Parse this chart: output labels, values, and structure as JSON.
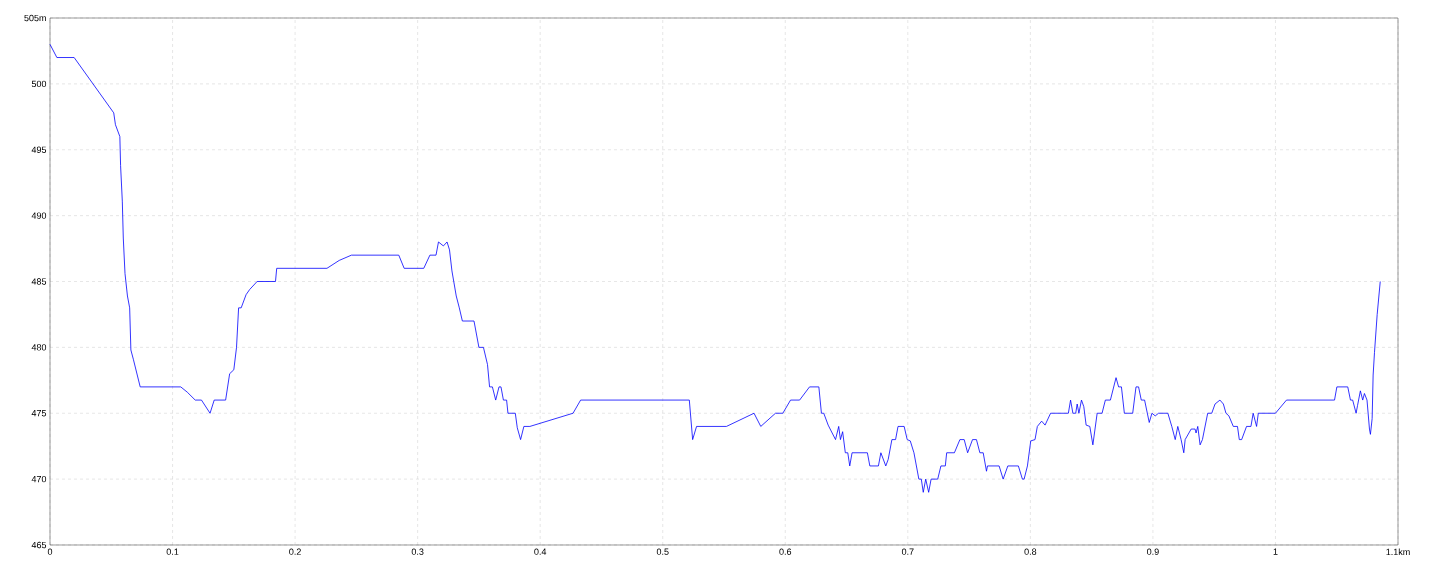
{
  "chart_data": {
    "type": "line",
    "color": "#0000ff",
    "grid": true,
    "xlim": [
      0,
      1.1
    ],
    "ylim": [
      465,
      505
    ],
    "xticks": [
      0,
      0.1,
      0.2,
      0.3,
      0.4,
      0.5,
      0.6,
      0.7,
      0.8,
      0.9,
      1,
      {
        "value": 1.1,
        "label": "1.1km"
      }
    ],
    "yticks": [
      465,
      470,
      475,
      480,
      485,
      490,
      495,
      500,
      {
        "value": 505,
        "label": "505m"
      }
    ],
    "x": [
      0,
      0.0056,
      0.0197,
      0.052,
      0.0534,
      0.057,
      0.0576,
      0.059,
      0.0598,
      0.0612,
      0.0632,
      0.065,
      0.066,
      0.068,
      0.0736,
      0.1067,
      0.112,
      0.1185,
      0.1236,
      0.1306,
      0.134,
      0.1433,
      0.1466,
      0.15,
      0.1522,
      0.1539,
      0.156,
      0.16,
      0.163,
      0.169,
      0.184,
      0.185,
      0.226,
      0.236,
      0.246,
      0.2846,
      0.289,
      0.305,
      0.31,
      0.315,
      0.317,
      0.321,
      0.324,
      0.326,
      0.328,
      0.3315,
      0.334,
      0.3365,
      0.346,
      0.35,
      0.3537,
      0.357,
      0.3587,
      0.361,
      0.3637,
      0.3664,
      0.368,
      0.37,
      0.3726,
      0.3737,
      0.3797,
      0.3813,
      0.384,
      0.3867,
      0.3916,
      0.4268,
      0.433,
      0.5217,
      0.5244,
      0.5276,
      0.552,
      0.5745,
      0.58,
      0.592,
      0.598,
      0.6043,
      0.6117,
      0.6198,
      0.6274,
      0.6295,
      0.6314,
      0.635,
      0.641,
      0.6436,
      0.645,
      0.6468,
      0.649,
      0.651,
      0.6526,
      0.6545,
      0.667,
      0.669,
      0.676,
      0.678,
      0.682,
      0.684,
      0.687,
      0.69,
      0.692,
      0.697,
      0.6995,
      0.702,
      0.705,
      0.709,
      0.711,
      0.7126,
      0.7146,
      0.717,
      0.719,
      0.7244,
      0.727,
      0.7306,
      0.7317,
      0.738,
      0.7425,
      0.746,
      0.7488,
      0.7528,
      0.756,
      0.7588,
      0.7615,
      0.7642,
      0.765,
      0.7745,
      0.7778,
      0.7816,
      0.7902,
      0.7935,
      0.7949,
      0.7976,
      0.8003,
      0.8038,
      0.8057,
      0.8092,
      0.812,
      0.8165,
      0.831,
      0.8328,
      0.8347,
      0.837,
      0.8382,
      0.8396,
      0.8417,
      0.8436,
      0.8455,
      0.8485,
      0.851,
      0.8545,
      0.8585,
      0.8612,
      0.8653,
      0.8699,
      0.872,
      0.8743,
      0.8767,
      0.8835,
      0.8862,
      0.8883,
      0.8905,
      0.8932,
      0.897,
      0.8992,
      0.9019,
      0.9046,
      0.9122,
      0.9154,
      0.9182,
      0.9203,
      0.923,
      0.9252,
      0.9263,
      0.9312,
      0.9344,
      0.9352,
      0.9366,
      0.9385,
      0.9404,
      0.9447,
      0.948,
      0.9507,
      0.9547,
      0.9575,
      0.9596,
      0.962,
      0.9656,
      0.969,
      0.9705,
      0.9724,
      0.9764,
      0.98,
      0.9818,
      0.9846,
      0.986,
      1.0,
      1.009,
      1.0482,
      1.0501,
      1.059,
      1.0612,
      1.063,
      1.0658,
      1.067,
      1.0693,
      1.0712,
      1.0726,
      1.0747,
      1.0767,
      1.0775,
      1.0789,
      1.0797,
      1.0808,
      1.083,
      1.0855
    ],
    "values": [
      503,
      502,
      502,
      497.8,
      496.9,
      496,
      493.8,
      491.1,
      488.3,
      485.6,
      483.9,
      483,
      479.8,
      479.1,
      477,
      477,
      476.6,
      476,
      476,
      475,
      476,
      476,
      478,
      478.3,
      480,
      483,
      483,
      484,
      484.4,
      485,
      485,
      486,
      486,
      486.6,
      487,
      487,
      486,
      486,
      487,
      487,
      488,
      487.7,
      488,
      487.4,
      485.8,
      483.9,
      483,
      482,
      482,
      480,
      480,
      478.7,
      477,
      477,
      476,
      477,
      477,
      476,
      476,
      475,
      475,
      473.9,
      473,
      474,
      474,
      475,
      476,
      476,
      473,
      474,
      474,
      475,
      474,
      475,
      475,
      476,
      476,
      477,
      477,
      475,
      475,
      474.1,
      473,
      474,
      473,
      473.6,
      472,
      472,
      471,
      472,
      472,
      471,
      471,
      472,
      471,
      471.5,
      473,
      473,
      474,
      474,
      473,
      472.9,
      472,
      470,
      470,
      469,
      470,
      469,
      470,
      470,
      471,
      471,
      472,
      472,
      473,
      473,
      472,
      473,
      473,
      472,
      472,
      470.6,
      471,
      471,
      470,
      471,
      471,
      470,
      470,
      471,
      472.9,
      473,
      474,
      474.4,
      474.1,
      475,
      475,
      476,
      475,
      475,
      475.7,
      475,
      476,
      475.5,
      474.1,
      474,
      472.6,
      475,
      475,
      476,
      476,
      477.7,
      477,
      477,
      475,
      475,
      477,
      477,
      476,
      476,
      474.3,
      475,
      474.8,
      475,
      475,
      474,
      473,
      474,
      473,
      472,
      473,
      473.8,
      473.8,
      473.5,
      474,
      472.6,
      473,
      475,
      475,
      475.7,
      476,
      475.7,
      475,
      474.8,
      474,
      474,
      473,
      473,
      474,
      474,
      475,
      474,
      475,
      475,
      476,
      476,
      477,
      477,
      476,
      476,
      475,
      475.6,
      476.7,
      476,
      476.5,
      476,
      473.8,
      473.4,
      474.6,
      477.9,
      479.6,
      482.5,
      485
    ]
  }
}
